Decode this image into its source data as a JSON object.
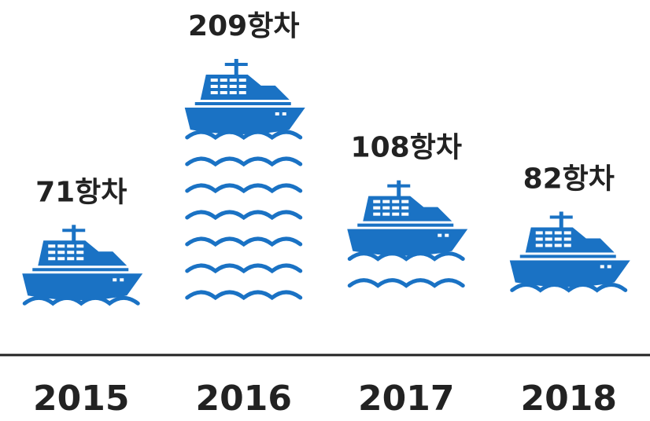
{
  "chart_data": {
    "type": "pictogram",
    "unit": "항차",
    "categories": [
      "2015",
      "2016",
      "2017",
      "2018"
    ],
    "values": [
      71,
      209,
      108,
      82
    ],
    "value_labels": [
      "71항차",
      "209항차",
      "108항차",
      "82항차"
    ],
    "color": "#1a72c4"
  }
}
